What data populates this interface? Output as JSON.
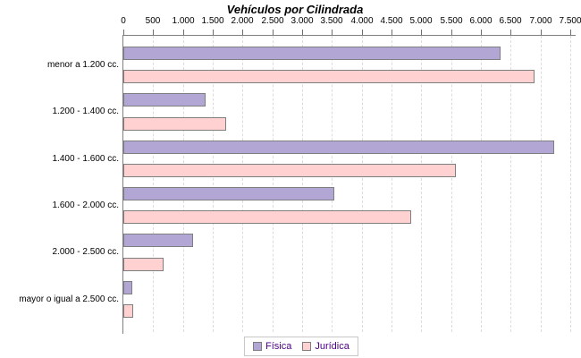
{
  "chart_data": {
    "type": "bar",
    "orientation": "horizontal",
    "title": "Vehículos por Cilindrada",
    "categories": [
      "menor a 1.200 cc.",
      "1.200 - 1.400 cc.",
      "1.400 - 1.600 cc.",
      "1.600 - 2.000 cc.",
      "2.000 - 2.500 cc.",
      "mayor o igual a 2.500 cc."
    ],
    "series": [
      {
        "name": "Física",
        "color": "#b2a7d4",
        "values": [
          6335,
          1385,
          7225,
          3540,
          1170,
          150
        ]
      },
      {
        "name": "Jurídica",
        "color": "#ffd1d1",
        "values": [
          6900,
          1725,
          5585,
          4835,
          675,
          165
        ]
      }
    ],
    "xlim": [
      0,
      7500
    ],
    "x_ticks": [
      0,
      500,
      1000,
      1500,
      2000,
      2500,
      3000,
      3500,
      4000,
      4500,
      5000,
      5500,
      6000,
      6500,
      7000,
      7500
    ],
    "x_tick_labels": [
      "0",
      "500",
      "1.000",
      "1.500",
      "2.000",
      "2.500",
      "3.000",
      "3.500",
      "4.000",
      "4.500",
      "5.000",
      "5.500",
      "6.000",
      "6.500",
      "7.000",
      "7.500"
    ],
    "axis_position": "top",
    "grid": true,
    "legend_position": "bottom",
    "colors": {
      "bar_border": "#7f7f7f",
      "axis_line": "#808080",
      "gridline": "#dcdcdc",
      "legend_text": "#4b0082",
      "title_text": "#000000"
    }
  }
}
